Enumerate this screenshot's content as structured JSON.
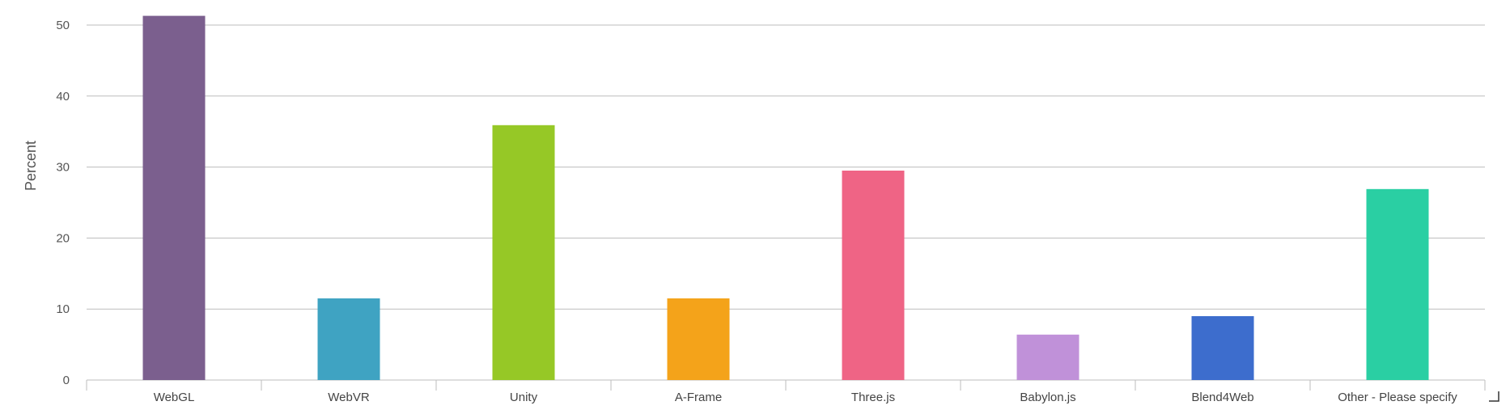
{
  "chart_data": {
    "type": "bar",
    "title": "",
    "xlabel": "",
    "ylabel": "Percent",
    "ylim": [
      0,
      50
    ],
    "yticks": [
      0,
      10,
      20,
      30,
      40,
      50
    ],
    "grid": true,
    "legend": "none",
    "categories": [
      "WebGL",
      "WebVR",
      "Unity",
      "A-Frame",
      "Three.js",
      "Babylon.js",
      "Blend4Web",
      "Other - Please specify"
    ],
    "values": [
      51.3,
      11.5,
      35.9,
      11.5,
      29.5,
      6.4,
      9.0,
      26.9
    ],
    "colors": [
      "#7b5f8e",
      "#3fa3c2",
      "#96c826",
      "#f4a31a",
      "#ef6485",
      "#c091d9",
      "#3d6dcd",
      "#2acfa3"
    ]
  }
}
